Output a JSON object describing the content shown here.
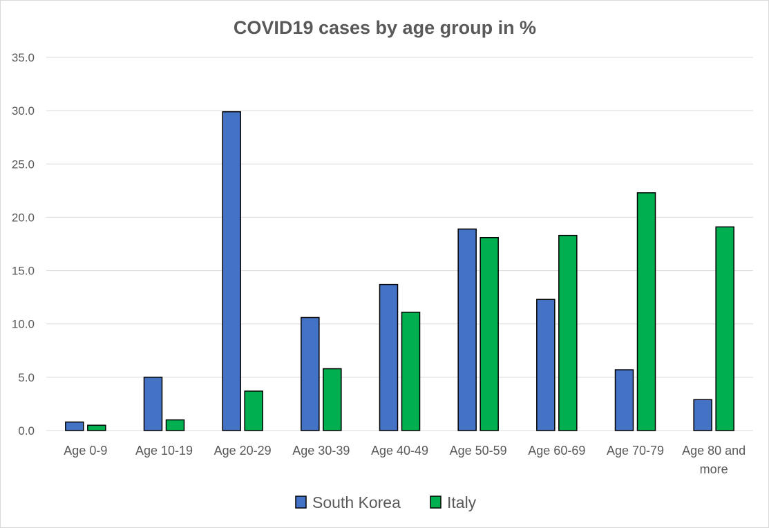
{
  "chart_data": {
    "type": "bar",
    "title": "COVID19 cases by age group in %",
    "xlabel": "",
    "ylabel": "",
    "ylim": [
      0,
      35
    ],
    "yticks": [
      "0.0",
      "5.0",
      "10.0",
      "15.0",
      "20.0",
      "25.0",
      "30.0",
      "35.0"
    ],
    "grid": true,
    "legend_position": "bottom",
    "categories": [
      [
        "Age 0-9"
      ],
      [
        "Age 10-19"
      ],
      [
        "Age 20-29"
      ],
      [
        "Age 30-39"
      ],
      [
        "Age 40-49"
      ],
      [
        "Age 50-59"
      ],
      [
        "Age 60-69"
      ],
      [
        "Age 70-79"
      ],
      [
        "Age 80 and",
        "more"
      ]
    ],
    "series": [
      {
        "name": "South Korea",
        "color": "#4472c4",
        "values": [
          0.8,
          5.0,
          29.9,
          10.6,
          13.7,
          18.9,
          12.3,
          5.7,
          2.9
        ]
      },
      {
        "name": "Italy",
        "color": "#00b050",
        "values": [
          0.5,
          1.0,
          3.7,
          5.8,
          11.1,
          18.1,
          18.3,
          22.3,
          19.1
        ]
      }
    ]
  }
}
